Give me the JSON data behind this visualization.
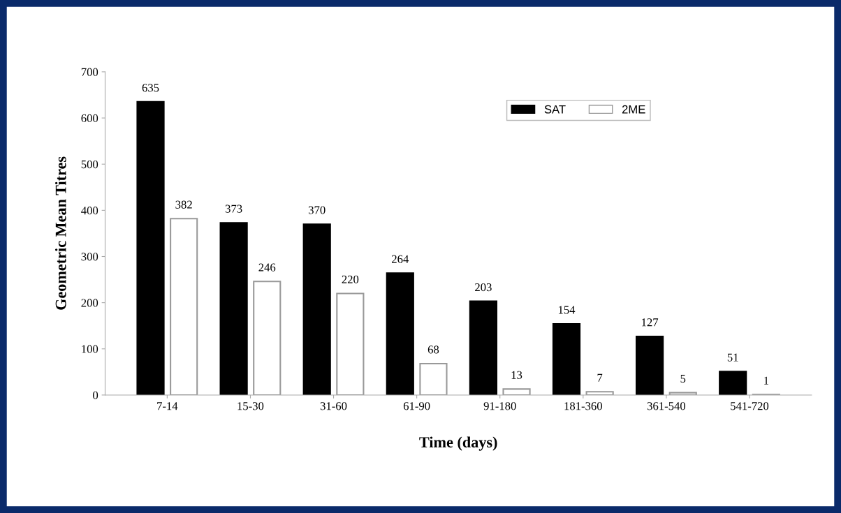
{
  "chart_data": {
    "type": "bar",
    "xlabel": "Time (days)",
    "ylabel": "Geometric Mean Titres",
    "categories": [
      "7-14",
      "15-30",
      "31-60",
      "61-90",
      "91-180",
      "181-360",
      "361-540",
      "541-720"
    ],
    "series": [
      {
        "name": "SAT",
        "color": "#000000",
        "values": [
          635,
          373,
          370,
          264,
          203,
          154,
          127,
          51
        ]
      },
      {
        "name": "2ME",
        "color": "#ffffff",
        "values": [
          382,
          246,
          220,
          68,
          13,
          7,
          5,
          1
        ]
      }
    ],
    "ylim": [
      0,
      700
    ],
    "yticks": [
      0,
      100,
      200,
      300,
      400,
      500,
      600,
      700
    ],
    "grid": false,
    "legend": "top right",
    "data_labels": true
  }
}
